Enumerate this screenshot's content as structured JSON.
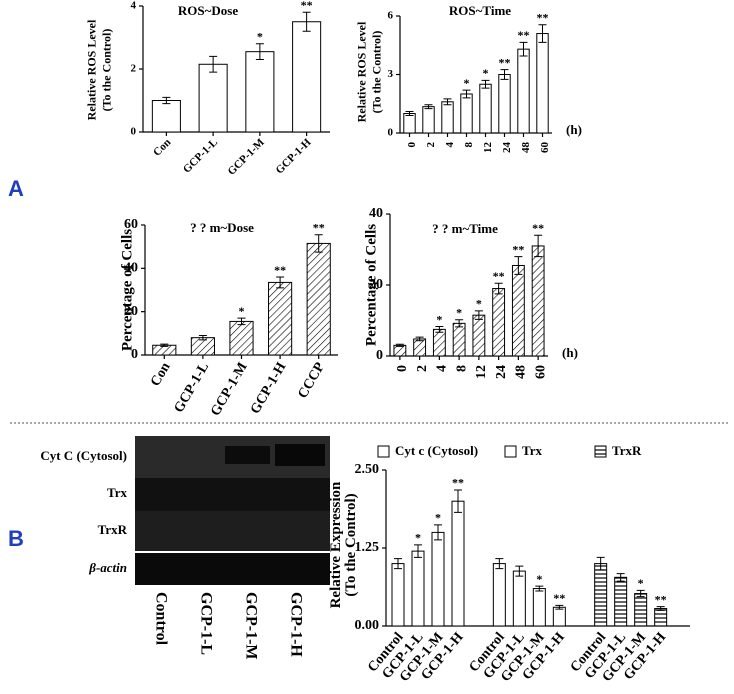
{
  "panel_labels": [
    "A",
    "B"
  ],
  "blot": {
    "rows": [
      "Cyt C (Cytosol)",
      "Trx",
      "TrxR",
      "β-actin"
    ],
    "columns": [
      "Control",
      "GCP-1-L",
      "GCP-1-M",
      "GCP-1-H"
    ]
  },
  "chart_data": [
    {
      "type": "bar",
      "title": "ROS~Dose",
      "y_label": [
        "Relative ROS Level",
        "(To the Control)"
      ],
      "categories": [
        "Con",
        "GCP-1-L",
        "GCP-1-M",
        "GCP-1-H"
      ],
      "values": [
        1.0,
        2.15,
        2.55,
        3.5
      ],
      "errors": [
        0.1,
        0.25,
        0.25,
        0.3
      ],
      "annotations": [
        null,
        null,
        "*",
        "**"
      ],
      "color": "#ffffff",
      "pattern": "none",
      "ylim": [
        0,
        4
      ],
      "yticks": [
        0,
        2,
        4
      ]
    },
    {
      "type": "bar",
      "title": "ROS~Time",
      "y_label": [
        "Relative ROS Level",
        "(To the Control)"
      ],
      "x_unit": "(h)",
      "categories": [
        "0",
        "2",
        "4",
        "8",
        "12",
        "24",
        "48",
        "60"
      ],
      "values": [
        1.0,
        1.35,
        1.6,
        2.0,
        2.5,
        3.0,
        4.3,
        5.1
      ],
      "errors": [
        0.1,
        0.1,
        0.15,
        0.2,
        0.2,
        0.25,
        0.35,
        0.45
      ],
      "annotations": [
        null,
        null,
        null,
        "*",
        "*",
        "**",
        "**",
        "**"
      ],
      "color": "#ffffff",
      "pattern": "none",
      "ylim": [
        0,
        6
      ],
      "yticks": [
        0,
        3,
        6
      ]
    },
    {
      "type": "bar",
      "title": "? ? m~Dose",
      "y_label": [
        "Percentage of Cells"
      ],
      "categories": [
        "Con",
        "GCP-1-L",
        "GCP-1-M",
        "GCP-1-H",
        "CCCP"
      ],
      "values": [
        4.5,
        8,
        15.5,
        33.5,
        51.5
      ],
      "errors": [
        0.5,
        1,
        1.5,
        2.5,
        4
      ],
      "annotations": [
        null,
        null,
        "*",
        "**",
        "**"
      ],
      "color": "#ffffff",
      "pattern": "diagonal",
      "ylim": [
        0,
        60
      ],
      "yticks": [
        0,
        20,
        40,
        60
      ]
    },
    {
      "type": "bar",
      "title": "? ? m~Time",
      "y_label": [
        "Percentage of Cells"
      ],
      "x_unit": "(h)",
      "categories": [
        "0",
        "2",
        "4",
        "8",
        "12",
        "24",
        "48",
        "60"
      ],
      "values": [
        3,
        4.8,
        7.5,
        9.2,
        11.5,
        19,
        25.5,
        31
      ],
      "errors": [
        0.3,
        0.5,
        0.8,
        1,
        1.2,
        1.5,
        2.5,
        3
      ],
      "annotations": [
        null,
        null,
        "*",
        "*",
        "*",
        "**",
        "**",
        "**"
      ],
      "color": "#ffffff",
      "pattern": "diagonal",
      "ylim": [
        0,
        40
      ],
      "yticks": [
        0,
        20,
        40
      ]
    },
    {
      "type": "grouped_bar",
      "y_label": [
        "Relative Expression",
        "(To the Control)"
      ],
      "categories": [
        "Control",
        "GCP-1-L",
        "GCP-1-M",
        "GCP-1-H"
      ],
      "series": [
        {
          "name": "Cyt c (Cytosol)",
          "color": "#ffffff",
          "pattern": "none",
          "values": [
            1.0,
            1.2,
            1.5,
            2.0
          ],
          "errors": [
            0.08,
            0.1,
            0.12,
            0.18
          ],
          "annotations": [
            null,
            "*",
            "*",
            "**"
          ]
        },
        {
          "name": "Trx",
          "color": "#ffffff",
          "pattern": "none",
          "values": [
            1.0,
            0.88,
            0.6,
            0.3
          ],
          "errors": [
            0.08,
            0.08,
            0.04,
            0.03
          ],
          "annotations": [
            null,
            null,
            "*",
            "**"
          ]
        },
        {
          "name": "TrxR",
          "color": "#ffffff",
          "pattern": "horizontal",
          "values": [
            1.0,
            0.78,
            0.52,
            0.28
          ],
          "errors": [
            0.1,
            0.06,
            0.05,
            0.03
          ],
          "annotations": [
            null,
            null,
            "*",
            "**"
          ]
        }
      ],
      "ylim": [
        0,
        2.5
      ],
      "yticks": [
        {
          "value": 0,
          "label": "0.00"
        },
        {
          "value": 1.25,
          "label": "1.25"
        },
        {
          "value": 2.5,
          "label": "2.50"
        }
      ]
    }
  ]
}
